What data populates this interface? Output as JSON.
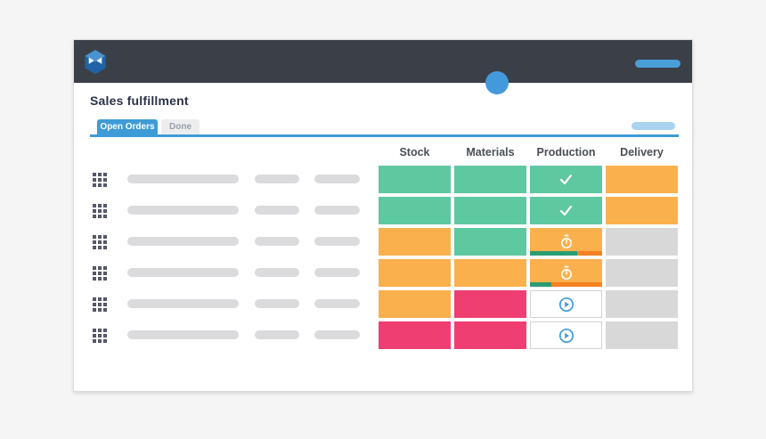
{
  "window": {
    "header": {
      "logo_icon": "cube-logo-icon",
      "menu_pill_placeholder": "menu-pill",
      "avatar_dot": "user-avatar-dot"
    }
  },
  "page": {
    "title": "Sales fulfillment"
  },
  "tabs": [
    {
      "label": "Open Orders",
      "active": true
    },
    {
      "label": "Done",
      "active": false
    }
  ],
  "table": {
    "columns": [
      "Stock",
      "Materials",
      "Production",
      "Delivery"
    ],
    "status_colors": {
      "done": "#5ec8a1",
      "warning": "#fbb04e",
      "late": "#ef3e71",
      "empty": "#d8d8d8",
      "actionable": "#ffffff"
    },
    "rows": [
      {
        "stock": "done",
        "materials": "done",
        "production": {
          "status": "done",
          "icon": "check-icon"
        },
        "delivery": "warning"
      },
      {
        "stock": "done",
        "materials": "done",
        "production": {
          "status": "done",
          "icon": "check-icon"
        },
        "delivery": "warning"
      },
      {
        "stock": "warning",
        "materials": "done",
        "production": {
          "status": "warning",
          "icon": "stopwatch-icon",
          "progress_pct": 65
        },
        "delivery": "empty"
      },
      {
        "stock": "warning",
        "materials": "warning",
        "production": {
          "status": "warning",
          "icon": "stopwatch-icon",
          "progress_pct": 30
        },
        "delivery": "empty"
      },
      {
        "stock": "warning",
        "materials": "late",
        "production": {
          "status": "actionable",
          "icon": "play-icon"
        },
        "delivery": "empty"
      },
      {
        "stock": "late",
        "materials": "late",
        "production": {
          "status": "actionable",
          "icon": "play-icon"
        },
        "delivery": "empty"
      }
    ]
  },
  "colors": {
    "accent_blue": "#3e9bd5",
    "light_blue_pill": "#a9d3f0",
    "header_dark": "#3b3f48",
    "progress_green": "#2a9d72",
    "progress_orange": "#f58220",
    "placeholder_gray": "#dbdbde"
  }
}
